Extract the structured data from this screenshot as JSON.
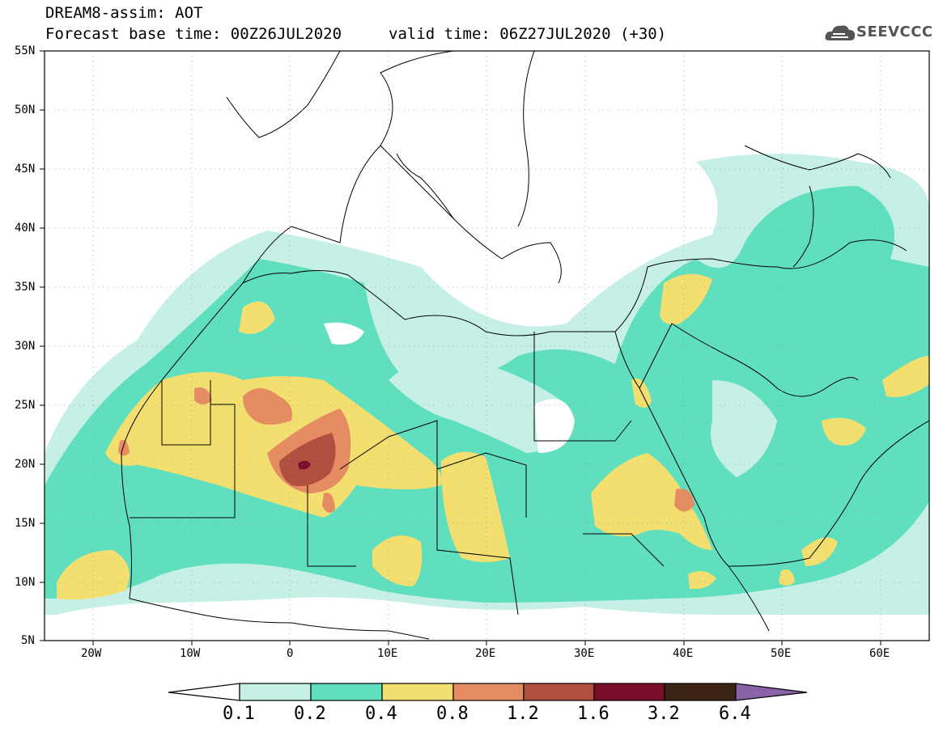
{
  "header": {
    "title": "DREAM8-assim: AOT",
    "base_time": "Forecast base time: 00Z26JUL2020",
    "valid_time": "valid time: 06Z27JUL2020 (+30)",
    "logo_text": "SEEVCCC"
  },
  "axes": {
    "lat_labels": [
      "55N",
      "50N",
      "45N",
      "40N",
      "35N",
      "30N",
      "25N",
      "20N",
      "15N",
      "10N",
      "5N"
    ],
    "lon_labels": [
      "20W",
      "10W",
      "0",
      "10E",
      "20E",
      "30E",
      "40E",
      "50E",
      "60E"
    ]
  },
  "colorbar": {
    "labels": [
      "0.1",
      "0.2",
      "0.4",
      "0.8",
      "1.2",
      "1.6",
      "3.2",
      "6.4"
    ],
    "colors": [
      "#ffffff",
      "#c6f0e6",
      "#5fdfbd",
      "#f3df70",
      "#e58c63",
      "#b04e40",
      "#7b0f2b",
      "#3b2416",
      "#8a62a8"
    ]
  },
  "palette": {
    "c01": "#c6f0e6",
    "c02": "#5fdfbd",
    "c04": "#f3df70",
    "c08": "#e58c63",
    "c12": "#b04e40",
    "c16": "#7b0f2b"
  }
}
